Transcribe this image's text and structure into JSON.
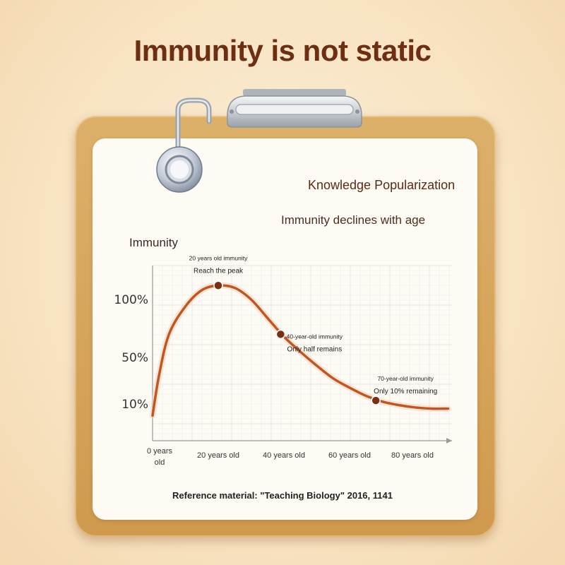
{
  "page": {
    "title": "Immunity is not static",
    "badge": "Knowledge Popularization",
    "subtitle": "Immunity declines with age",
    "reference": "Reference material: \"Teaching Biology\" 2016, 1141"
  },
  "chart_data": {
    "type": "line",
    "title": "Immunity declines with age",
    "ylabel": "Immunity",
    "xlabel": "",
    "x_ticks": [
      "0 years old",
      "20 years old",
      "40 years old",
      "60 years old",
      "80 years old"
    ],
    "x_tick_values": [
      0,
      20,
      40,
      60,
      80
    ],
    "y_ticks": [
      "100%",
      "50%",
      "10%"
    ],
    "y_tick_values": [
      100,
      50,
      10
    ],
    "xlim": [
      0,
      95
    ],
    "grid": true,
    "series": [
      {
        "color": "#c2561f",
        "x": [
          0,
          2,
          5,
          10,
          15,
          20,
          25,
          30,
          35,
          40,
          45,
          50,
          55,
          60,
          65,
          70,
          75,
          80,
          85,
          90
        ],
        "y": [
          0,
          35,
          70,
          94,
          108,
          112,
          110,
          100,
          84,
          68,
          55,
          43,
          32,
          24,
          17,
          12,
          9,
          7,
          6,
          6
        ]
      }
    ],
    "annotations": [
      {
        "x": 20,
        "y": 112,
        "lines": [
          "20 years old immunity",
          "Reach the peak"
        ]
      },
      {
        "x": 39,
        "y": 70,
        "lines": [
          "40-year-old immunity",
          "Only half remains"
        ]
      },
      {
        "x": 68,
        "y": 13,
        "lines": [
          "70-year-old immunity",
          "Only 10% remaining"
        ]
      }
    ],
    "marker_color": "#7a2e12"
  }
}
